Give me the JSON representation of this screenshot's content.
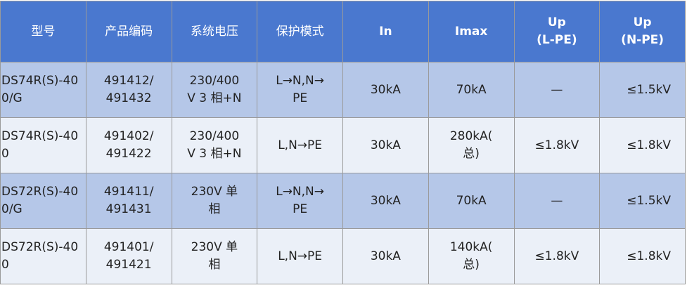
{
  "table": {
    "header": [
      "型号",
      "产品编码",
      "系统电压",
      "保护模式",
      "In",
      "Imax",
      "Up\n(L-PE)",
      "Up\n(N-PE)"
    ],
    "rows": [
      [
        "DS74R(S)-400/G",
        "491412/\n491432",
        "230/400\nV 3 相+N",
        "L→N,N→\nPE",
        "30kA",
        "70kA",
        "—",
        "≤1.5kV"
      ],
      [
        "DS74R(S)-400",
        "491402/\n491422",
        "230/400\nV 3 相+N",
        "L,N→PE",
        "30kA",
        "280kA(\n总)",
        "≤1.8kV",
        "≤1.8kV"
      ],
      [
        "DS72R(S)-400/G",
        "491411/\n491431",
        "230V 单\n相",
        "L→N,N→\nPE",
        "30kA",
        "70kA",
        "—",
        "≤1.5kV"
      ],
      [
        "DS72R(S)-400",
        "491401/\n491421",
        "230V 单\n相",
        "L,N→PE",
        "30kA",
        "140kA(\n总)",
        "≤1.8kV",
        "≤1.8kV"
      ]
    ]
  }
}
